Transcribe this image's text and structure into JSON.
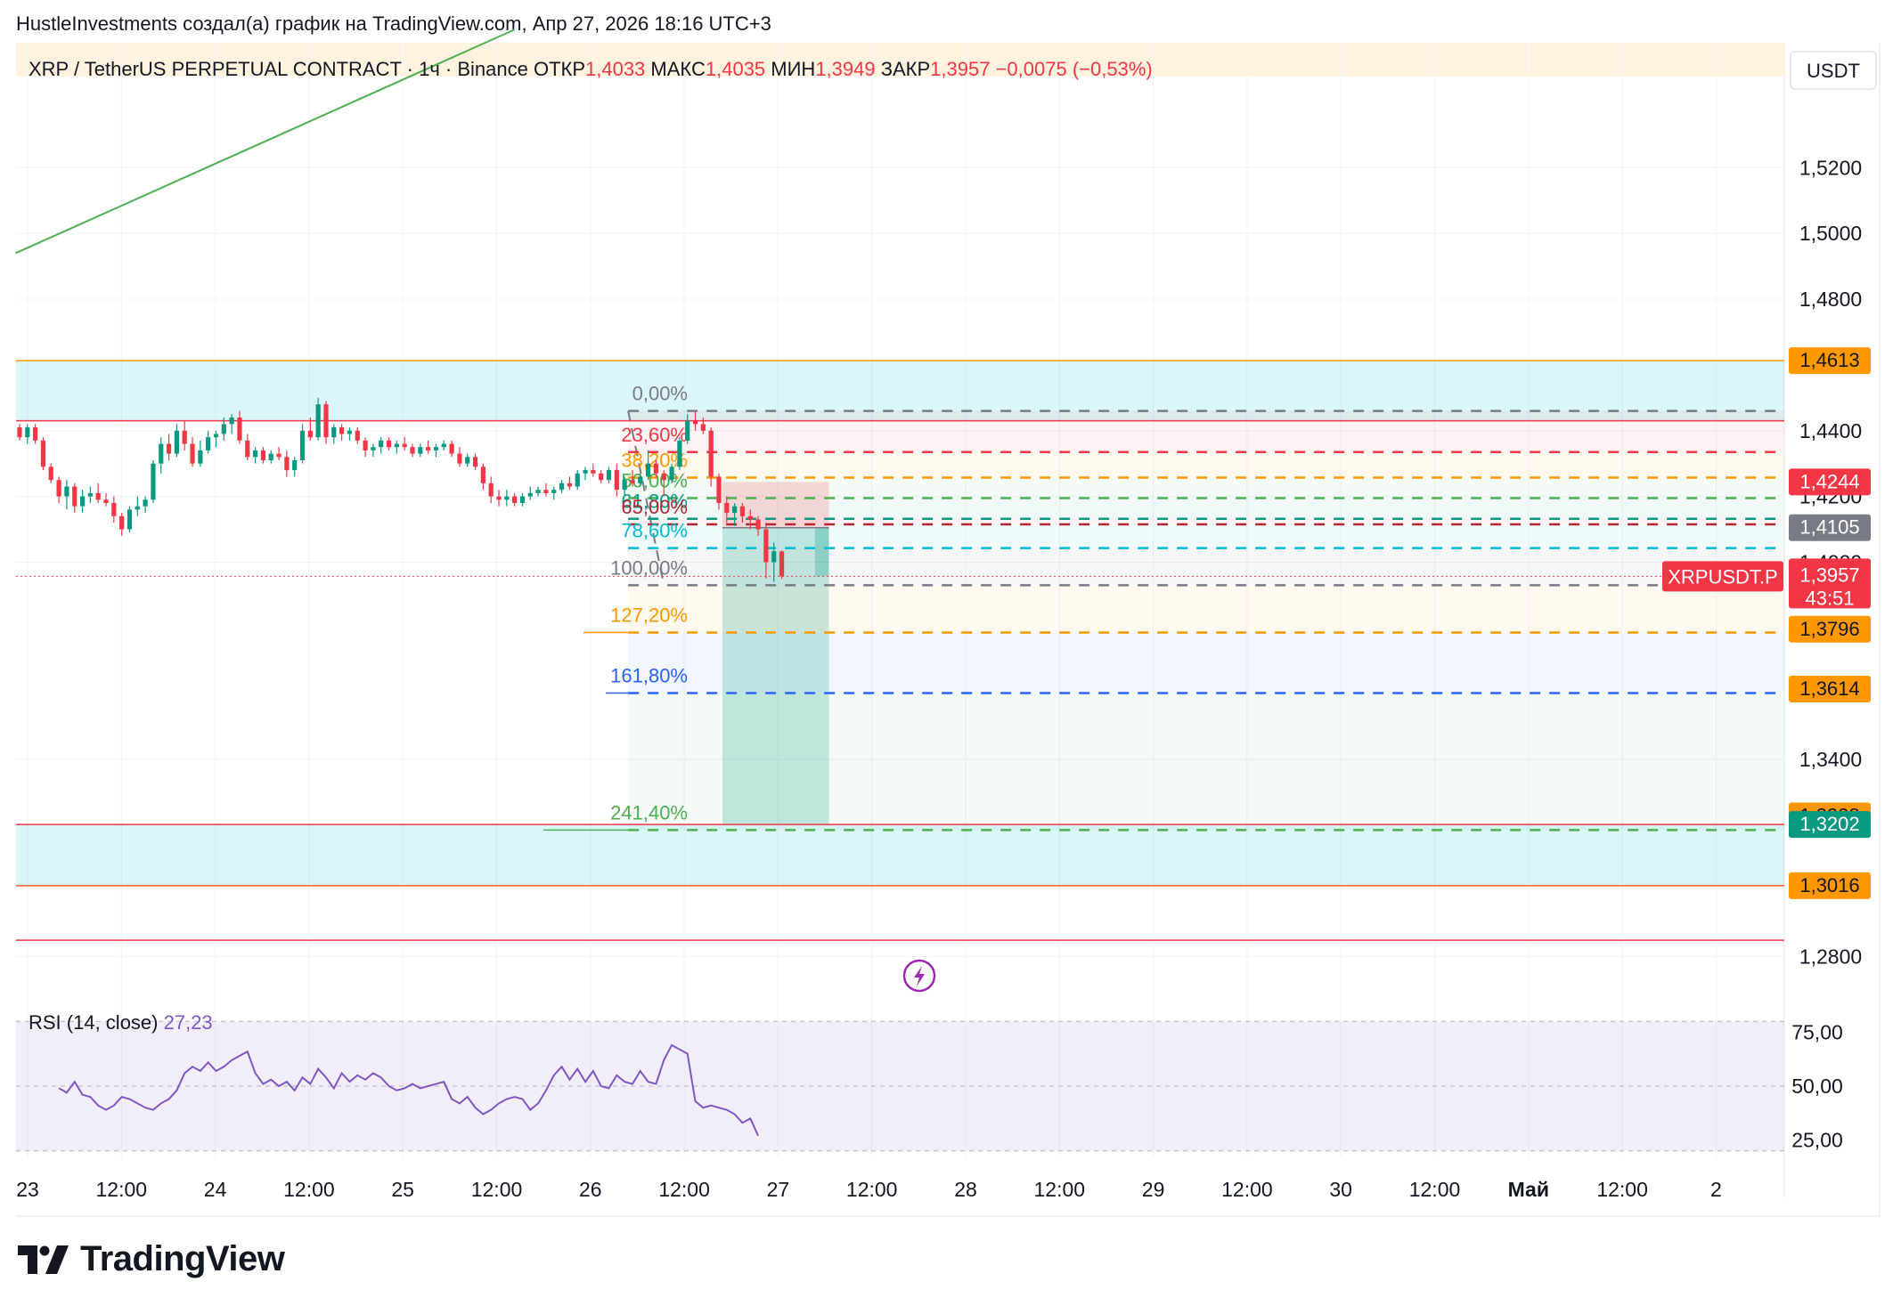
{
  "header": {
    "title": "HustleInvestments создал(а) график на TradingView.com, Апр 27, 2026 18:16 UTC+3"
  },
  "brand": {
    "name": "TradingView",
    "icon": "tradingview-logo-icon"
  },
  "chart_data": {
    "type": "candlestick",
    "symbol_line": "XRP / TetherUS PERPETUAL CONTRACT · 1ч · Binance",
    "ohlc": {
      "open_label": "ОТКР",
      "open": "1,4033",
      "high_label": "МАКС",
      "high": "1,4035",
      "low_label": "МИН",
      "low": "1,3949",
      "close_label": "ЗАКР",
      "close": "1,3957",
      "change": "−0,0075 (−0,53%)"
    },
    "currency": "USDT",
    "y_axis": {
      "min": 1.265,
      "max": 1.558,
      "ticks": [
        {
          "v": 1.52,
          "label": "1,5200"
        },
        {
          "v": 1.5,
          "label": "1,5000"
        },
        {
          "v": 1.48,
          "label": "1,4800"
        },
        {
          "v": 1.44,
          "label": "1,4400"
        },
        {
          "v": 1.42,
          "label": "1,4200"
        },
        {
          "v": 1.4,
          "label": "1,4000"
        },
        {
          "v": 1.34,
          "label": "1,3400"
        },
        {
          "v": 1.28,
          "label": "1,2800"
        }
      ]
    },
    "x_axis": {
      "ticks": [
        {
          "label": "23",
          "bold": false
        },
        {
          "label": "12:00",
          "bold": false
        },
        {
          "label": "24",
          "bold": false
        },
        {
          "label": "12:00",
          "bold": false
        },
        {
          "label": "25",
          "bold": false
        },
        {
          "label": "12:00",
          "bold": false
        },
        {
          "label": "26",
          "bold": false
        },
        {
          "label": "12:00",
          "bold": false
        },
        {
          "label": "27",
          "bold": false
        },
        {
          "label": "12:00",
          "bold": false
        },
        {
          "label": "28",
          "bold": false
        },
        {
          "label": "12:00",
          "bold": false
        },
        {
          "label": "29",
          "bold": false
        },
        {
          "label": "12:00",
          "bold": false
        },
        {
          "label": "30",
          "bold": false
        },
        {
          "label": "12:00",
          "bold": false
        },
        {
          "label": "Май",
          "bold": true
        },
        {
          "label": "12:00",
          "bold": false
        },
        {
          "label": "2",
          "bold": false
        }
      ]
    },
    "price_tags": [
      {
        "v": 1.4613,
        "label": "1,4613",
        "bg": "#ff9800",
        "fg": "#131722"
      },
      {
        "v": 1.4244,
        "label": "1,4244",
        "bg": "#f23645",
        "fg": "#ffffff"
      },
      {
        "v": 1.4105,
        "label": "1,4105",
        "bg": "#787b86",
        "fg": "#ffffff"
      },
      {
        "v": 1.3796,
        "label": "1,3796",
        "bg": "#ff9800",
        "fg": "#131722"
      },
      {
        "v": 1.3614,
        "label": "1,3614",
        "bg": "#ff9800",
        "fg": "#131722"
      },
      {
        "v": 1.3228,
        "label": "1,3228",
        "bg": "#ff9800",
        "fg": "#131722"
      },
      {
        "v": 1.3202,
        "label": "1,3202",
        "bg": "#089981",
        "fg": "#ffffff"
      },
      {
        "v": 1.3016,
        "label": "1,3016",
        "bg": "#ff9800",
        "fg": "#131722"
      }
    ],
    "last_price": {
      "v": 1.3957,
      "label": "1,3957",
      "countdown": "43:51",
      "symbol_tag": "XRPUSDT.P",
      "color": "#f23645"
    },
    "fib_levels": [
      {
        "pct": "0,00%",
        "v": 1.446,
        "color": "#787b86"
      },
      {
        "pct": "23,60%",
        "v": 1.4335,
        "color": "#f23645"
      },
      {
        "pct": "38,20%",
        "v": 1.4257,
        "color": "#ff9800"
      },
      {
        "pct": "50,00%",
        "v": 1.4195,
        "color": "#4caf50"
      },
      {
        "pct": "61,80%",
        "v": 1.4132,
        "color": "#089981"
      },
      {
        "pct": "65,00%",
        "v": 1.4115,
        "color": "#b22833"
      },
      {
        "pct": "78,60%",
        "v": 1.4043,
        "color": "#00bcd4"
      },
      {
        "pct": "100,00%",
        "v": 1.393,
        "color": "#787b86"
      },
      {
        "pct": "127,20%",
        "v": 1.3786,
        "color": "#ff9800"
      },
      {
        "pct": "161,80%",
        "v": 1.3602,
        "color": "#2962ff"
      },
      {
        "pct": "241,40%",
        "v": 1.3185,
        "color": "#4caf50"
      }
    ],
    "zones": [
      {
        "top": 1.4613,
        "bottom": 1.443,
        "color": "#00bcd4",
        "opacity": 0.14
      },
      {
        "top": 1.3202,
        "bottom": 1.3016,
        "color": "#00bcd4",
        "opacity": 0.14
      }
    ],
    "horizontal_lines": [
      {
        "v": 1.4613,
        "color": "#ff9800"
      },
      {
        "v": 1.443,
        "color": "#f23645"
      },
      {
        "v": 1.3202,
        "color": "#f23645"
      },
      {
        "v": 1.3016,
        "color": "#ff5722"
      },
      {
        "v": 1.285,
        "color": "#f23645"
      }
    ],
    "trendline": {
      "from": [
        -0.5,
        1.494
      ],
      "to": [
        63,
        1.562
      ],
      "color": "#4caf50"
    },
    "position": {
      "entry": 1.4105,
      "stop": 1.4244,
      "target": 1.3202,
      "from_bar": 89,
      "to_bar": 103
    },
    "candles": [
      [
        1.441,
        1.442,
        1.437,
        1.438
      ],
      [
        1.438,
        1.442,
        1.436,
        1.441
      ],
      [
        1.441,
        1.442,
        1.436,
        1.437
      ],
      [
        1.437,
        1.438,
        1.428,
        1.429
      ],
      [
        1.429,
        1.43,
        1.424,
        1.425
      ],
      [
        1.425,
        1.426,
        1.418,
        1.42
      ],
      [
        1.42,
        1.425,
        1.416,
        1.423
      ],
      [
        1.423,
        1.424,
        1.415,
        1.417
      ],
      [
        1.417,
        1.422,
        1.415,
        1.42
      ],
      [
        1.42,
        1.423,
        1.418,
        1.421
      ],
      [
        1.421,
        1.424,
        1.418,
        1.419
      ],
      [
        1.419,
        1.421,
        1.417,
        1.418
      ],
      [
        1.418,
        1.42,
        1.412,
        1.414
      ],
      [
        1.414,
        1.415,
        1.408,
        1.41
      ],
      [
        1.41,
        1.417,
        1.409,
        1.416
      ],
      [
        1.416,
        1.42,
        1.414,
        1.417
      ],
      [
        1.417,
        1.42,
        1.415,
        1.419
      ],
      [
        1.419,
        1.431,
        1.418,
        1.43
      ],
      [
        1.43,
        1.438,
        1.427,
        1.436
      ],
      [
        1.436,
        1.439,
        1.431,
        1.433
      ],
      [
        1.433,
        1.442,
        1.432,
        1.44
      ],
      [
        1.44,
        1.443,
        1.434,
        1.436
      ],
      [
        1.436,
        1.438,
        1.429,
        1.43
      ],
      [
        1.43,
        1.437,
        1.429,
        1.434
      ],
      [
        1.434,
        1.44,
        1.433,
        1.438
      ],
      [
        1.438,
        1.44,
        1.435,
        1.439
      ],
      [
        1.439,
        1.444,
        1.437,
        1.442
      ],
      [
        1.442,
        1.445,
        1.439,
        1.444
      ],
      [
        1.444,
        1.446,
        1.436,
        1.437
      ],
      [
        1.437,
        1.439,
        1.431,
        1.432
      ],
      [
        1.432,
        1.435,
        1.43,
        1.434
      ],
      [
        1.434,
        1.435,
        1.43,
        1.431
      ],
      [
        1.431,
        1.434,
        1.43,
        1.433
      ],
      [
        1.433,
        1.435,
        1.431,
        1.432
      ],
      [
        1.432,
        1.434,
        1.426,
        1.428
      ],
      [
        1.428,
        1.432,
        1.426,
        1.431
      ],
      [
        1.431,
        1.442,
        1.43,
        1.44
      ],
      [
        1.44,
        1.444,
        1.437,
        1.438
      ],
      [
        1.438,
        1.45,
        1.437,
        1.448
      ],
      [
        1.448,
        1.449,
        1.436,
        1.438
      ],
      [
        1.438,
        1.442,
        1.436,
        1.441
      ],
      [
        1.441,
        1.442,
        1.437,
        1.439
      ],
      [
        1.439,
        1.441,
        1.437,
        1.44
      ],
      [
        1.44,
        1.441,
        1.436,
        1.437
      ],
      [
        1.437,
        1.438,
        1.432,
        1.434
      ],
      [
        1.434,
        1.436,
        1.432,
        1.435
      ],
      [
        1.435,
        1.438,
        1.433,
        1.437
      ],
      [
        1.437,
        1.438,
        1.434,
        1.435
      ],
      [
        1.435,
        1.437,
        1.433,
        1.436
      ],
      [
        1.436,
        1.438,
        1.434,
        1.435
      ],
      [
        1.435,
        1.436,
        1.432,
        1.433
      ],
      [
        1.433,
        1.436,
        1.432,
        1.435
      ],
      [
        1.435,
        1.437,
        1.433,
        1.434
      ],
      [
        1.434,
        1.436,
        1.432,
        1.435
      ],
      [
        1.435,
        1.437,
        1.434,
        1.436
      ],
      [
        1.436,
        1.437,
        1.432,
        1.433
      ],
      [
        1.433,
        1.435,
        1.429,
        1.43
      ],
      [
        1.43,
        1.433,
        1.429,
        1.432
      ],
      [
        1.432,
        1.433,
        1.428,
        1.429
      ],
      [
        1.429,
        1.43,
        1.422,
        1.424
      ],
      [
        1.424,
        1.426,
        1.418,
        1.42
      ],
      [
        1.42,
        1.422,
        1.417,
        1.419
      ],
      [
        1.419,
        1.422,
        1.417,
        1.42
      ],
      [
        1.42,
        1.421,
        1.417,
        1.418
      ],
      [
        1.418,
        1.421,
        1.417,
        1.42
      ],
      [
        1.42,
        1.423,
        1.419,
        1.421
      ],
      [
        1.421,
        1.423,
        1.42,
        1.422
      ],
      [
        1.422,
        1.424,
        1.42,
        1.421
      ],
      [
        1.421,
        1.423,
        1.419,
        1.422
      ],
      [
        1.422,
        1.425,
        1.421,
        1.424
      ],
      [
        1.424,
        1.426,
        1.422,
        1.423
      ],
      [
        1.423,
        1.428,
        1.422,
        1.427
      ],
      [
        1.427,
        1.429,
        1.425,
        1.428
      ],
      [
        1.428,
        1.43,
        1.426,
        1.427
      ],
      [
        1.427,
        1.428,
        1.424,
        1.425
      ],
      [
        1.425,
        1.429,
        1.424,
        1.428
      ],
      [
        1.428,
        1.43,
        1.42,
        1.422
      ],
      [
        1.422,
        1.426,
        1.42,
        1.425
      ],
      [
        1.425,
        1.428,
        1.423,
        1.424
      ],
      [
        1.424,
        1.427,
        1.423,
        1.426
      ],
      [
        1.426,
        1.434,
        1.425,
        1.43
      ],
      [
        1.43,
        1.431,
        1.426,
        1.427
      ],
      [
        1.427,
        1.428,
        1.42,
        1.425
      ],
      [
        1.425,
        1.43,
        1.424,
        1.429
      ],
      [
        1.429,
        1.438,
        1.428,
        1.437
      ],
      [
        1.437,
        1.445,
        1.436,
        1.443
      ],
      [
        1.443,
        1.446,
        1.44,
        1.442
      ],
      [
        1.442,
        1.444,
        1.439,
        1.44
      ],
      [
        1.44,
        1.441,
        1.423,
        1.426
      ],
      [
        1.426,
        1.427,
        1.416,
        1.418
      ],
      [
        1.418,
        1.42,
        1.412,
        1.415
      ],
      [
        1.415,
        1.418,
        1.411,
        1.417
      ],
      [
        1.417,
        1.418,
        1.412,
        1.414
      ],
      [
        1.414,
        1.416,
        1.41,
        1.413
      ],
      [
        1.413,
        1.414,
        1.408,
        1.41
      ],
      [
        1.41,
        1.412,
        1.395,
        1.4
      ],
      [
        1.4,
        1.406,
        1.394,
        1.4033
      ],
      [
        1.4033,
        1.4035,
        1.3949,
        1.3957
      ]
    ],
    "rsi": {
      "label": "RSI (14, close)",
      "value": "27,23",
      "min": 17,
      "max": 83,
      "levels": [
        {
          "v": 75,
          "label": "75,00"
        },
        {
          "v": 50,
          "label": "50,00"
        },
        {
          "v": 25,
          "label": "25,00"
        }
      ],
      "band_top": 80,
      "band_bottom": 20,
      "values": [
        49,
        47,
        52,
        46,
        45,
        41,
        39,
        41,
        45,
        44,
        42,
        40,
        39,
        42,
        44,
        48,
        56,
        59,
        57,
        61,
        57,
        59,
        62,
        64,
        66,
        56,
        51,
        53,
        50,
        52,
        48,
        54,
        51,
        58,
        54,
        49,
        56,
        52,
        55,
        53,
        56,
        54,
        50,
        48,
        49,
        51,
        49,
        50,
        51,
        52,
        44,
        42,
        45,
        40,
        37,
        39,
        42,
        44,
        45,
        44,
        39,
        42,
        48,
        55,
        59,
        53,
        58,
        52,
        57,
        50,
        49,
        55,
        52,
        51,
        57,
        52,
        51,
        62,
        69,
        67,
        65,
        43,
        40,
        41,
        40,
        39,
        37,
        33,
        35,
        27
      ]
    }
  }
}
